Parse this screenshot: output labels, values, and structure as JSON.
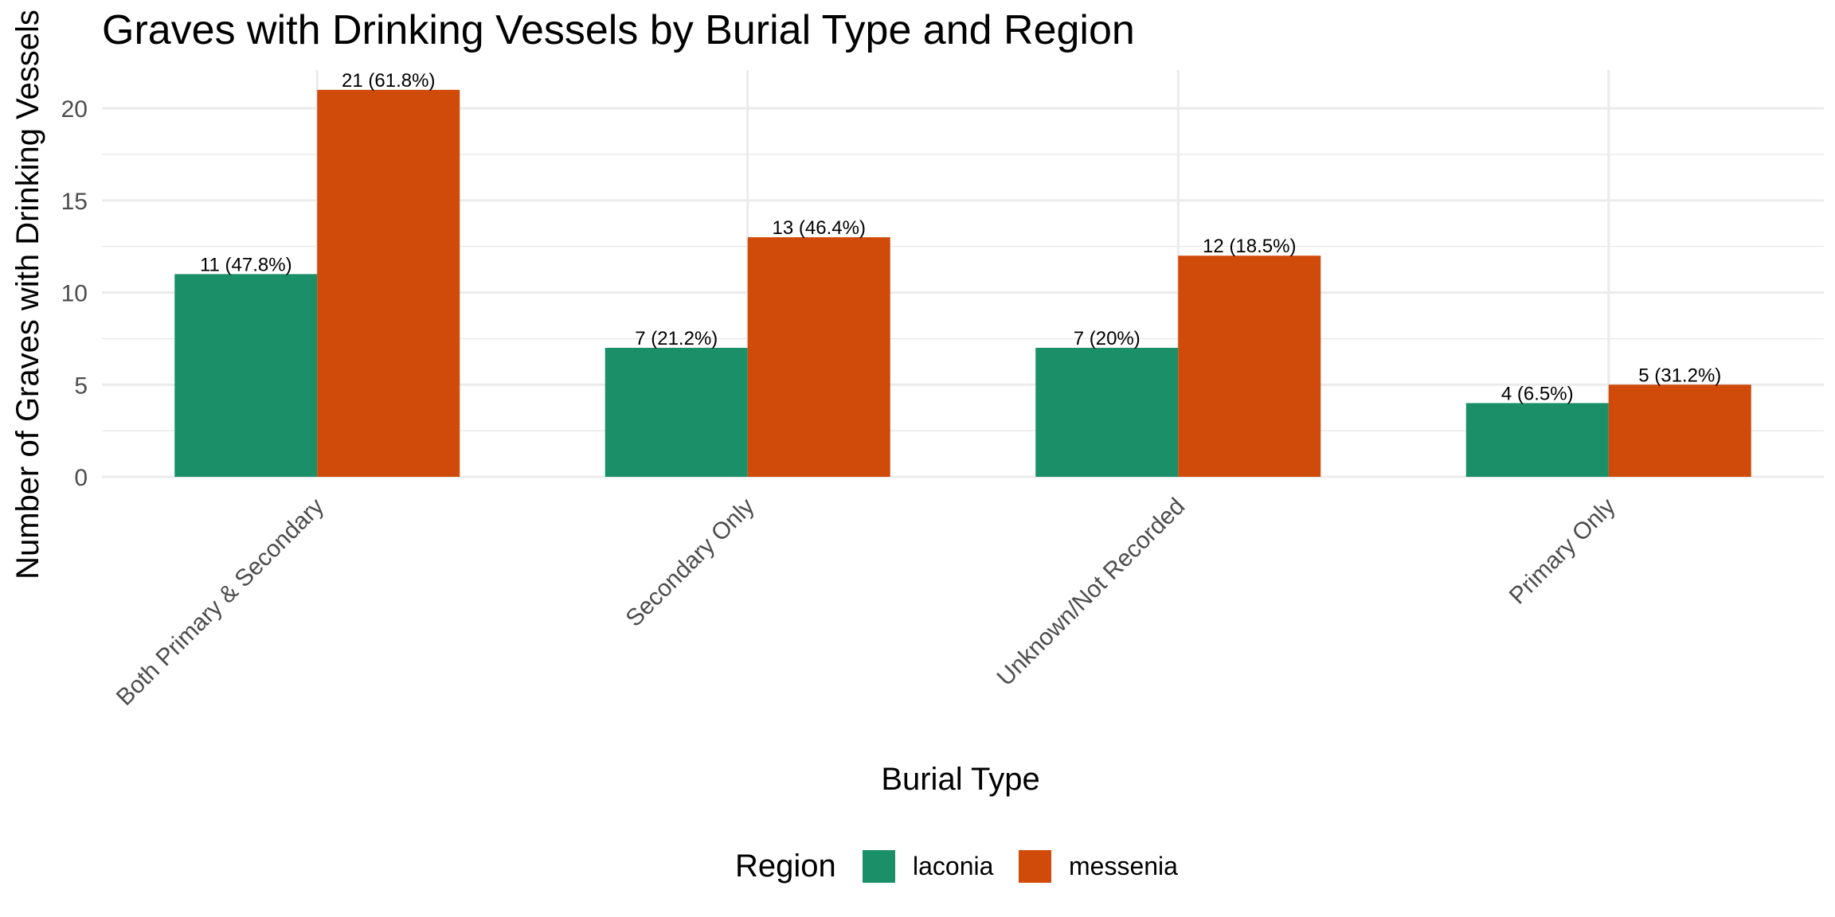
{
  "chart_data": {
    "type": "bar",
    "title": "Graves with Drinking Vessels by Burial Type and Region",
    "xlabel": "Burial Type",
    "ylabel": "Number of Graves with Drinking Vessels",
    "categories": [
      "Both Primary & Secondary",
      "Secondary Only",
      "Unknown/Not Recorded",
      "Primary Only"
    ],
    "series": [
      {
        "name": "laconia",
        "color": "#1b9068",
        "values": [
          11,
          7,
          7,
          4
        ],
        "labels": [
          "11 (47.8%)",
          "7 (21.2%)",
          "7 (20%)",
          "4 (6.5%)"
        ]
      },
      {
        "name": "messenia",
        "color": "#d04a0a",
        "values": [
          21,
          13,
          12,
          5
        ],
        "labels": [
          "21 (61.8%)",
          "13 (46.4%)",
          "12 (18.5%)",
          "5 (31.2%)"
        ]
      }
    ],
    "ylim": [
      0,
      22
    ],
    "yticks": [
      0,
      5,
      10,
      15,
      20
    ],
    "grid": true,
    "legend": {
      "title": "Region",
      "position": "bottom"
    }
  }
}
